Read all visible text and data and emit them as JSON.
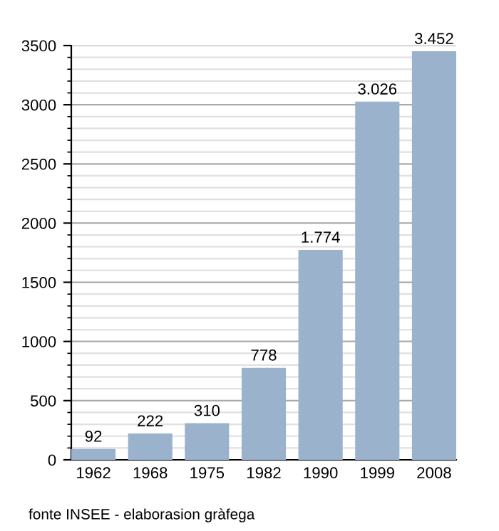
{
  "chart_data": {
    "type": "bar",
    "categories": [
      "1962",
      "1968",
      "1975",
      "1982",
      "1990",
      "1999",
      "2008"
    ],
    "values": [
      92,
      222,
      310,
      778,
      1774,
      3026,
      3452
    ],
    "value_labels": [
      "92",
      "222",
      "310",
      "778",
      "1.774",
      "3.026",
      "3.452"
    ],
    "color": "#9ab2cc",
    "ylim": [
      0,
      3500
    ],
    "yticks": [
      0,
      500,
      1000,
      1500,
      2000,
      2500,
      3000,
      3500
    ],
    "grid": "y",
    "annotations": [
      "fonte INSEE - elaborasion gràfega"
    ]
  }
}
